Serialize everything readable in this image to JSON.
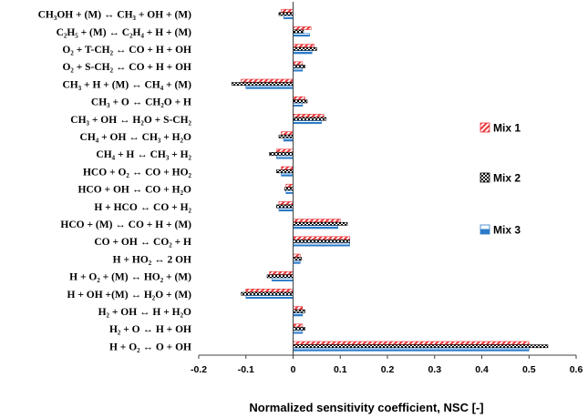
{
  "chart_data": {
    "type": "bar",
    "orientation": "horizontal",
    "xlabel": "Normalized sensitivity coefficient, NSC [-]",
    "xlim": [
      -0.2,
      0.6
    ],
    "xticks": [
      "-0.2",
      "-0.1",
      "0",
      "0.1",
      "0.2",
      "0.3",
      "0.4",
      "0.5",
      "0.6"
    ],
    "grid": false,
    "legend_position": "right",
    "categories": [
      "CH₃OH + (M) ↔ CH₃ + OH + (M)",
      "C₂H₅ + (M) ↔ C₂H₄ + H + (M)",
      "O₂ + T-CH₂ ↔ CO + H + OH",
      "O₂ + S-CH₂ ↔ CO + H + OH",
      "CH₃ + H + (M) ↔ CH₄ + (M)",
      "CH₃ + O ↔ CH₂O + H",
      "CH₃ + OH ↔ H₂O + S-CH₂",
      "CH₄ + OH ↔ CH₃ + H₂O",
      "CH₄ + H ↔ CH₃ + H₂",
      "HCO + O₂ ↔ CO + HO₂",
      "HCO + OH ↔ CO + H₂O",
      "H + HCO ↔ CO + H₂",
      "HCO + (M) ↔ CO + H + (M)",
      "CO + OH ↔ CO₂ + H",
      "H + HO₂ ↔ 2 OH",
      "H + O₂ + (M) ↔ HO₂ + (M)",
      "H + OH +(M) ↔ H₂O + (M)",
      "H₂ + OH ↔ H + H₂O",
      "H₂ + O ↔ H + OH",
      "H + O₂ ↔ O + OH"
    ],
    "series": [
      {
        "name": "Mix 1",
        "color": "#e8373a",
        "pattern": "diagonal-hatch",
        "values": [
          -0.025,
          0.038,
          0.045,
          0.02,
          -0.11,
          0.025,
          0.065,
          -0.025,
          -0.035,
          -0.025,
          -0.015,
          -0.03,
          0.1,
          0.12,
          0.015,
          -0.05,
          -0.1,
          0.02,
          0.02,
          0.5
        ]
      },
      {
        "name": "Mix 2",
        "color": "#000000",
        "pattern": "checker",
        "values": [
          -0.03,
          0.022,
          0.05,
          0.025,
          -0.13,
          0.03,
          0.07,
          -0.03,
          -0.05,
          -0.035,
          -0.018,
          -0.035,
          0.115,
          0.12,
          0.018,
          -0.055,
          -0.11,
          0.025,
          0.025,
          0.54
        ]
      },
      {
        "name": "Mix 3",
        "color": "#2c7bc8",
        "pattern": "horizontal-split",
        "values": [
          -0.02,
          0.035,
          0.04,
          0.02,
          -0.1,
          0.02,
          0.06,
          -0.02,
          -0.035,
          -0.025,
          -0.015,
          -0.03,
          0.095,
          0.12,
          0.015,
          -0.045,
          -0.1,
          0.02,
          0.02,
          0.5
        ]
      }
    ]
  }
}
